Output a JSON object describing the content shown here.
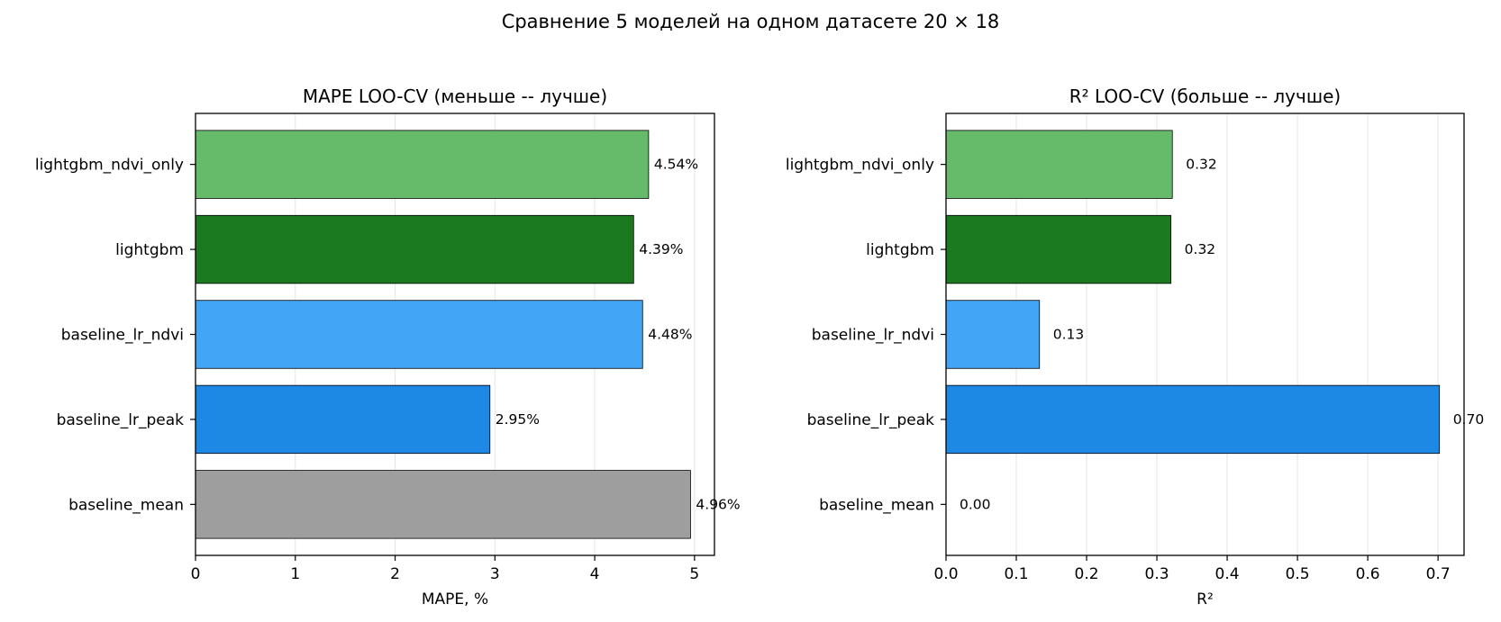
{
  "suptitle": "Сравнение 5 моделей на одном датасете 20 × 18",
  "chart_data": [
    {
      "type": "bar",
      "orientation": "horizontal",
      "title": "MAPE LOO-CV (меньше -- лучше)",
      "xlabel": "MAPE, %",
      "ylabel": "",
      "xlim": [
        0,
        5.2
      ],
      "xticks": [
        0,
        1,
        2,
        3,
        4,
        5
      ],
      "xtick_labels": [
        "0",
        "1",
        "2",
        "3",
        "4",
        "5"
      ],
      "grid": "x",
      "categories": [
        "lightgbm_ndvi_only",
        "lightgbm",
        "baseline_lr_ndvi",
        "baseline_lr_peak",
        "baseline_mean"
      ],
      "values": [
        4.54,
        4.39,
        4.48,
        2.95,
        4.96
      ],
      "value_labels": [
        "4.54%",
        "4.39%",
        "4.48%",
        "2.95%",
        "4.96%"
      ],
      "colors": [
        "#66bb6a",
        "#1b7a1f",
        "#42a5f5",
        "#1e88e5",
        "#9e9e9e"
      ]
    },
    {
      "type": "bar",
      "orientation": "horizontal",
      "title": "R² LOO-CV (больше -- лучше)",
      "xlabel": "R²",
      "ylabel": "",
      "xlim": [
        0,
        0.737
      ],
      "xticks": [
        0,
        0.1,
        0.2,
        0.3,
        0.4,
        0.5,
        0.6,
        0.7
      ],
      "xtick_labels": [
        "0.0",
        "0.1",
        "0.2",
        "0.3",
        "0.4",
        "0.5",
        "0.6",
        "0.7"
      ],
      "grid": "x",
      "categories": [
        "lightgbm_ndvi_only",
        "lightgbm",
        "baseline_lr_ndvi",
        "baseline_lr_peak",
        "baseline_mean"
      ],
      "values": [
        0.322,
        0.32,
        0.133,
        0.702,
        0.0
      ],
      "value_labels": [
        "0.32",
        "0.32",
        "0.13",
        "0.70",
        "0.00"
      ],
      "colors": [
        "#66bb6a",
        "#1b7a1f",
        "#42a5f5",
        "#1e88e5",
        "#9e9e9e"
      ]
    }
  ]
}
